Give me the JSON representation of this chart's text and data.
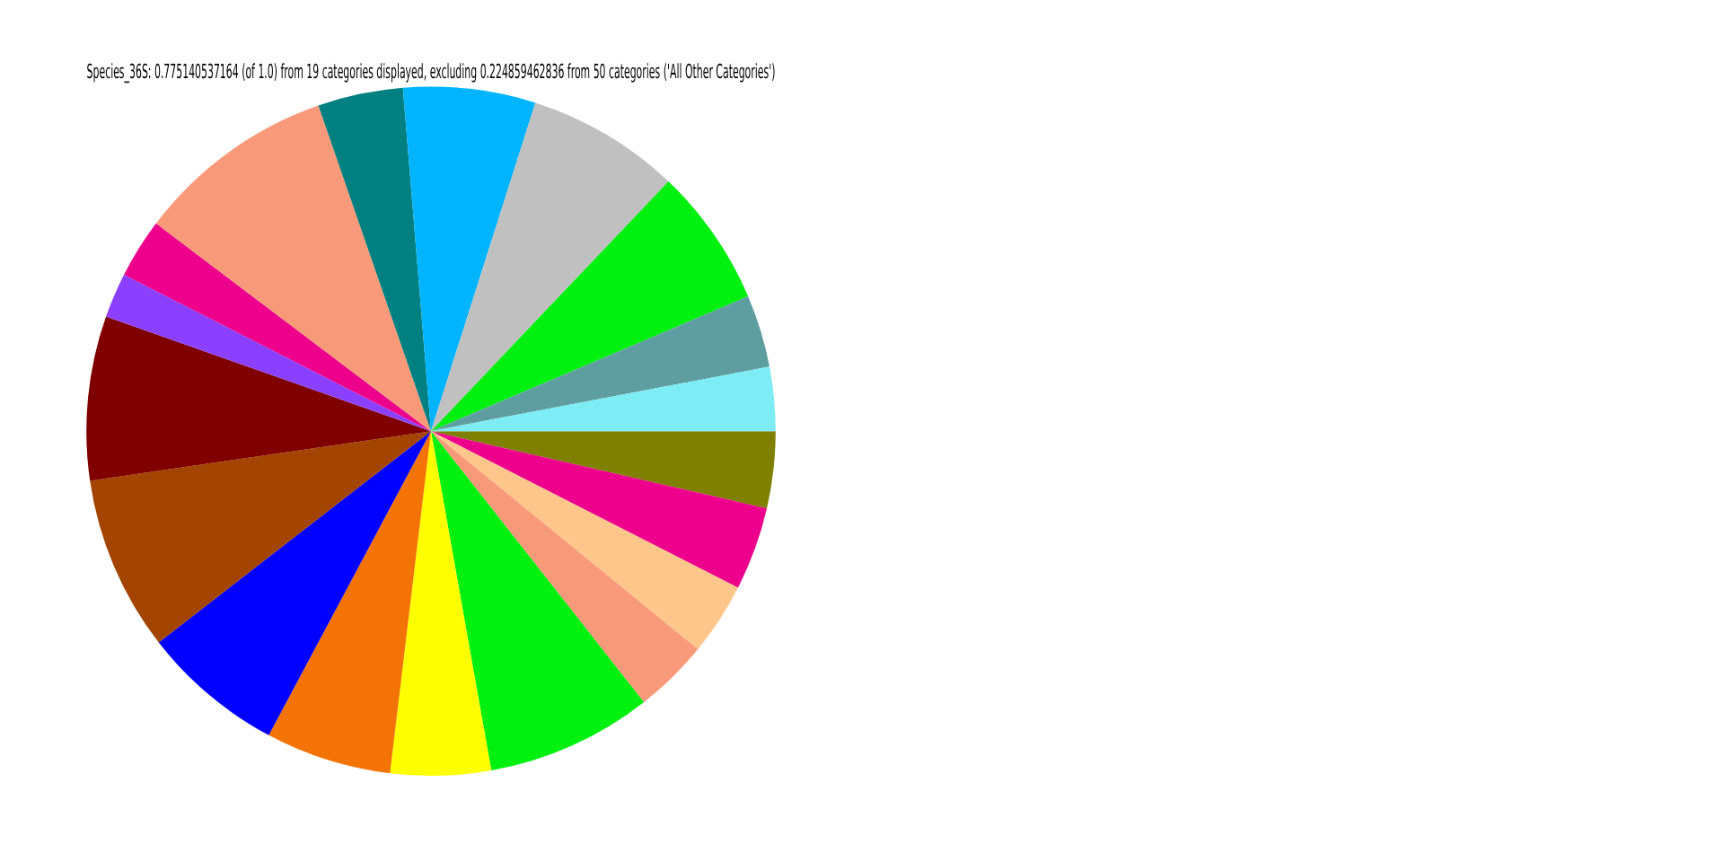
{
  "chart_data": {
    "type": "pie",
    "title": "Species_36S: 0.775140537164 (of 1.0) from 19 categories displayed, excluding 0.224859462836 from 50 categories ('All Other Categories')",
    "categories": [
      null,
      null,
      null,
      null,
      null,
      null,
      null,
      null,
      null,
      null,
      null,
      null,
      null,
      null,
      null,
      null,
      null,
      null,
      null
    ],
    "values": [
      3.6,
      3.9,
      3.4,
      3.5,
      7.8,
      4.7,
      5.9,
      6.7,
      8.2,
      7.7,
      2.1,
      2.8,
      9.4,
      4.0,
      6.2,
      7.2,
      6.5,
      3.4,
      3.0
    ],
    "colors": [
      "#808000",
      "#ec008c",
      "#fec68a",
      "#f8997a",
      "#00f00f",
      "#ffff00",
      "#f47306",
      "#0000ff",
      "#a34400",
      "#800000",
      "#8b40ff",
      "#ec008c",
      "#f8997a",
      "#008080",
      "#00b4ff",
      "#c0c0c0",
      "#00f00f",
      "#5f9ea0",
      "#7eecf4"
    ]
  }
}
